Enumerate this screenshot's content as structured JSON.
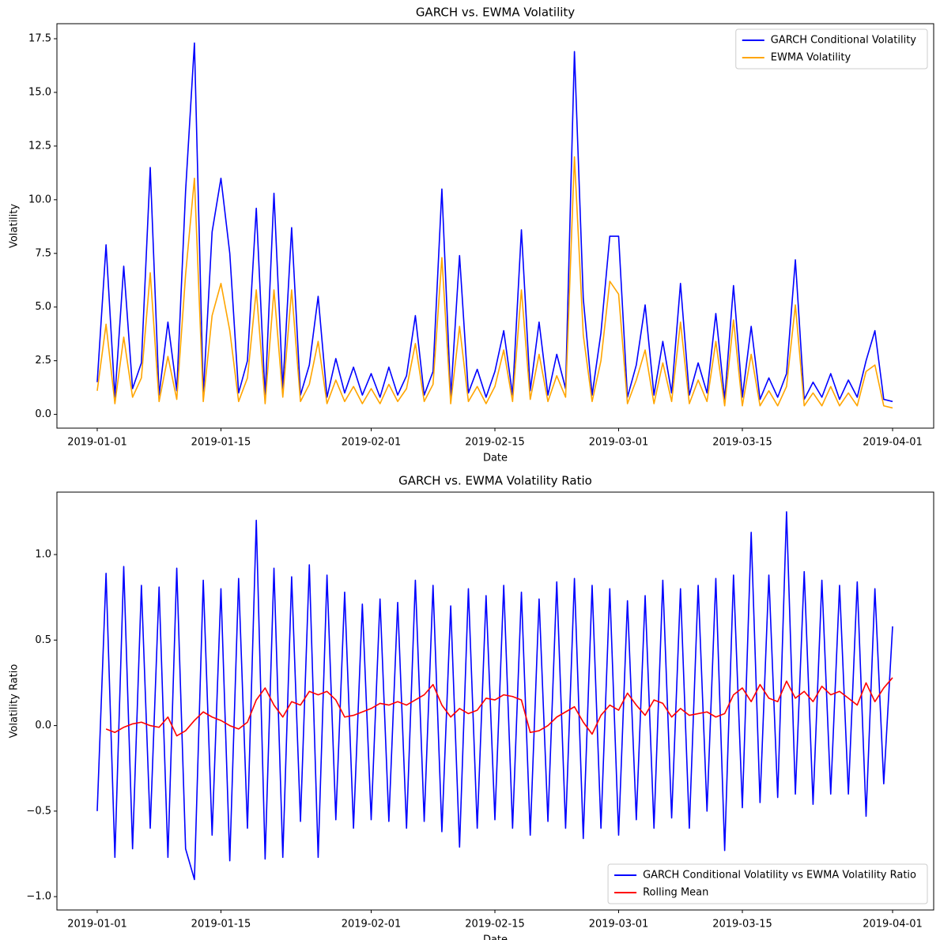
{
  "chart_data": [
    {
      "type": "line",
      "title": "GARCH vs. EWMA Volatility",
      "x_label": "Date",
      "y_label": "Volatility",
      "x": [
        "2019-01-01",
        "2019-01-02",
        "2019-01-03",
        "2019-01-04",
        "2019-01-05",
        "2019-01-06",
        "2019-01-07",
        "2019-01-08",
        "2019-01-09",
        "2019-01-10",
        "2019-01-11",
        "2019-01-12",
        "2019-01-13",
        "2019-01-14",
        "2019-01-15",
        "2019-01-16",
        "2019-01-17",
        "2019-01-18",
        "2019-01-19",
        "2019-01-20",
        "2019-01-21",
        "2019-01-22",
        "2019-01-23",
        "2019-01-24",
        "2019-01-25",
        "2019-01-26",
        "2019-01-27",
        "2019-01-28",
        "2019-01-29",
        "2019-01-30",
        "2019-01-31",
        "2019-02-01",
        "2019-02-02",
        "2019-02-03",
        "2019-02-04",
        "2019-02-05",
        "2019-02-06",
        "2019-02-07",
        "2019-02-08",
        "2019-02-09",
        "2019-02-10",
        "2019-02-11",
        "2019-02-12",
        "2019-02-13",
        "2019-02-14",
        "2019-02-15",
        "2019-02-16",
        "2019-02-17",
        "2019-02-18",
        "2019-02-19",
        "2019-02-20",
        "2019-02-21",
        "2019-02-22",
        "2019-02-23",
        "2019-02-24",
        "2019-02-25",
        "2019-02-26",
        "2019-02-27",
        "2019-02-28",
        "2019-03-01",
        "2019-03-02",
        "2019-03-03",
        "2019-03-04",
        "2019-03-05",
        "2019-03-06",
        "2019-03-07",
        "2019-03-08",
        "2019-03-09",
        "2019-03-10",
        "2019-03-11",
        "2019-03-12",
        "2019-03-13",
        "2019-03-14",
        "2019-03-15",
        "2019-03-16",
        "2019-03-17",
        "2019-03-18",
        "2019-03-19",
        "2019-03-20",
        "2019-03-21",
        "2019-03-22",
        "2019-03-23",
        "2019-03-24",
        "2019-03-25",
        "2019-03-26",
        "2019-03-27",
        "2019-03-28",
        "2019-03-29",
        "2019-03-30",
        "2019-03-31",
        "2019-04-01"
      ],
      "series": [
        {
          "name": "GARCH Conditional Volatility",
          "color": "#0000ff",
          "values": [
            1.5,
            7.9,
            0.8,
            6.9,
            1.2,
            2.4,
            11.5,
            0.9,
            4.3,
            1.1,
            10.4,
            17.3,
            0.9,
            8.5,
            11.0,
            7.5,
            1.0,
            2.5,
            9.6,
            0.8,
            10.3,
            1.2,
            8.7,
            0.9,
            2.3,
            5.5,
            0.8,
            2.6,
            1.0,
            2.2,
            0.9,
            1.9,
            0.8,
            2.2,
            0.9,
            1.8,
            4.6,
            0.9,
            2.0,
            10.5,
            0.8,
            7.4,
            1.0,
            2.1,
            0.8,
            2.0,
            3.9,
            0.9,
            8.6,
            1.1,
            4.3,
            0.9,
            2.8,
            1.2,
            16.9,
            5.4,
            0.9,
            3.8,
            8.3,
            8.3,
            0.8,
            2.3,
            5.1,
            0.9,
            3.4,
            1.0,
            6.1,
            0.9,
            2.4,
            1.0,
            4.7,
            0.7,
            6.0,
            0.8,
            4.1,
            0.7,
            1.7,
            0.8,
            1.9,
            7.2,
            0.7,
            1.5,
            0.8,
            1.9,
            0.7,
            1.6,
            0.8,
            2.5,
            3.9,
            0.7,
            0.6
          ]
        },
        {
          "name": "EWMA Volatility",
          "color": "#ffa500",
          "values": [
            1.1,
            4.2,
            0.5,
            3.6,
            0.8,
            1.7,
            6.6,
            0.6,
            2.7,
            0.7,
            6.5,
            11.0,
            0.6,
            4.6,
            6.1,
            3.9,
            0.6,
            1.7,
            5.8,
            0.5,
            5.8,
            0.8,
            5.8,
            0.6,
            1.4,
            3.4,
            0.5,
            1.6,
            0.6,
            1.3,
            0.5,
            1.2,
            0.5,
            1.4,
            0.6,
            1.2,
            3.3,
            0.6,
            1.4,
            7.3,
            0.5,
            4.1,
            0.6,
            1.3,
            0.5,
            1.3,
            3.0,
            0.6,
            5.8,
            0.7,
            2.8,
            0.6,
            1.8,
            0.8,
            12.0,
            3.7,
            0.6,
            2.5,
            6.2,
            5.6,
            0.5,
            1.6,
            3.0,
            0.5,
            2.4,
            0.6,
            4.3,
            0.5,
            1.6,
            0.6,
            3.4,
            0.4,
            4.4,
            0.4,
            2.8,
            0.4,
            1.1,
            0.4,
            1.3,
            5.1,
            0.4,
            1.0,
            0.4,
            1.3,
            0.4,
            1.0,
            0.4,
            2.0,
            2.3,
            0.4,
            0.3
          ]
        }
      ],
      "xlim": [
        "2018-12-27T10:34",
        "2019-04-05T15:36"
      ],
      "xticks": [
        "2019-01-01",
        "2019-01-15",
        "2019-02-01",
        "2019-02-15",
        "2019-03-01",
        "2019-03-15",
        "2019-04-01"
      ],
      "ylim": [
        -0.64,
        18.2
      ],
      "yticks": [
        {
          "value": 0,
          "label": "0.0"
        },
        2.5,
        {
          "value": 5,
          "label": "5.0"
        },
        7.5,
        {
          "value": 10,
          "label": "10.0"
        },
        12.5,
        {
          "value": 15,
          "label": "15.0"
        },
        17.5
      ],
      "legend": "upper right"
    },
    {
      "type": "line",
      "title": "GARCH vs. EWMA Volatility Ratio",
      "x_label": "Date",
      "y_label": "Volatility Ratio",
      "x": [
        "2019-01-01",
        "2019-01-02",
        "2019-01-03",
        "2019-01-04",
        "2019-01-05",
        "2019-01-06",
        "2019-01-07",
        "2019-01-08",
        "2019-01-09",
        "2019-01-10",
        "2019-01-11",
        "2019-01-12",
        "2019-01-13",
        "2019-01-14",
        "2019-01-15",
        "2019-01-16",
        "2019-01-17",
        "2019-01-18",
        "2019-01-19",
        "2019-01-20",
        "2019-01-21",
        "2019-01-22",
        "2019-01-23",
        "2019-01-24",
        "2019-01-25",
        "2019-01-26",
        "2019-01-27",
        "2019-01-28",
        "2019-01-29",
        "2019-01-30",
        "2019-01-31",
        "2019-02-01",
        "2019-02-02",
        "2019-02-03",
        "2019-02-04",
        "2019-02-05",
        "2019-02-06",
        "2019-02-07",
        "2019-02-08",
        "2019-02-09",
        "2019-02-10",
        "2019-02-11",
        "2019-02-12",
        "2019-02-13",
        "2019-02-14",
        "2019-02-15",
        "2019-02-16",
        "2019-02-17",
        "2019-02-18",
        "2019-02-19",
        "2019-02-20",
        "2019-02-21",
        "2019-02-22",
        "2019-02-23",
        "2019-02-24",
        "2019-02-25",
        "2019-02-26",
        "2019-02-27",
        "2019-02-28",
        "2019-03-01",
        "2019-03-02",
        "2019-03-03",
        "2019-03-04",
        "2019-03-05",
        "2019-03-06",
        "2019-03-07",
        "2019-03-08",
        "2019-03-09",
        "2019-03-10",
        "2019-03-11",
        "2019-03-12",
        "2019-03-13",
        "2019-03-14",
        "2019-03-15",
        "2019-03-16",
        "2019-03-17",
        "2019-03-18",
        "2019-03-19",
        "2019-03-20",
        "2019-03-21",
        "2019-03-22",
        "2019-03-23",
        "2019-03-24",
        "2019-03-25",
        "2019-03-26",
        "2019-03-27",
        "2019-03-28",
        "2019-03-29",
        "2019-03-30",
        "2019-03-31",
        "2019-04-01"
      ],
      "series": [
        {
          "name": "GARCH Conditional Volatility vs EWMA Volatility Ratio",
          "color": "#0000ff",
          "values": [
            -0.5,
            0.89,
            -0.77,
            0.93,
            -0.72,
            0.82,
            -0.6,
            0.81,
            -0.77,
            0.92,
            -0.72,
            -0.9,
            0.85,
            -0.64,
            0.8,
            -0.79,
            0.86,
            -0.6,
            1.2,
            -0.78,
            0.92,
            -0.77,
            0.87,
            -0.56,
            0.94,
            -0.77,
            0.88,
            -0.55,
            0.78,
            -0.6,
            0.71,
            -0.55,
            0.74,
            -0.56,
            0.72,
            -0.6,
            0.85,
            -0.56,
            0.82,
            -0.62,
            0.7,
            -0.71,
            0.8,
            -0.6,
            0.76,
            -0.55,
            0.82,
            -0.6,
            0.78,
            -0.64,
            0.74,
            -0.56,
            0.84,
            -0.6,
            0.86,
            -0.66,
            0.82,
            -0.6,
            0.8,
            -0.64,
            0.73,
            -0.55,
            0.76,
            -0.6,
            0.85,
            -0.54,
            0.8,
            -0.6,
            0.82,
            -0.5,
            0.86,
            -0.73,
            0.88,
            -0.48,
            1.13,
            -0.45,
            0.88,
            -0.42,
            1.25,
            -0.4,
            0.9,
            -0.46,
            0.85,
            -0.4,
            0.82,
            -0.4,
            0.84,
            -0.53,
            0.8,
            -0.34,
            0.58
          ]
        },
        {
          "name": "Rolling Mean",
          "color": "#ff0000",
          "values": [
            null,
            -0.02,
            -0.04,
            -0.01,
            0.01,
            0.02,
            0.0,
            -0.01,
            0.05,
            -0.06,
            -0.03,
            0.03,
            0.08,
            0.05,
            0.03,
            0.0,
            -0.02,
            0.02,
            0.15,
            0.22,
            0.12,
            0.05,
            0.14,
            0.12,
            0.2,
            0.18,
            0.2,
            0.15,
            0.05,
            0.06,
            0.08,
            0.1,
            0.13,
            0.12,
            0.14,
            0.12,
            0.15,
            0.18,
            0.24,
            0.12,
            0.05,
            0.1,
            0.07,
            0.09,
            0.16,
            0.15,
            0.18,
            0.17,
            0.15,
            -0.04,
            -0.03,
            0.0,
            0.05,
            0.08,
            0.11,
            0.02,
            -0.05,
            0.06,
            0.12,
            0.09,
            0.19,
            0.12,
            0.06,
            0.15,
            0.13,
            0.05,
            0.1,
            0.06,
            0.07,
            0.08,
            0.05,
            0.07,
            0.18,
            0.22,
            0.14,
            0.24,
            0.16,
            0.14,
            0.26,
            0.16,
            0.2,
            0.14,
            0.23,
            0.18,
            0.2,
            0.16,
            0.12,
            0.25,
            0.14,
            0.22,
            0.28
          ]
        }
      ],
      "xlim": [
        "2018-12-27T10:34",
        "2019-04-05T15:36"
      ],
      "xticks": [
        "2019-01-01",
        "2019-01-15",
        "2019-02-01",
        "2019-02-15",
        "2019-03-01",
        "2019-03-15",
        "2019-04-01"
      ],
      "ylim": [
        -1.078,
        1.365
      ],
      "yticks": [
        {
          "value": -1,
          "label": "−1.0"
        },
        {
          "value": -0.5,
          "label": "−0.5"
        },
        {
          "value": 0,
          "label": "0.0"
        },
        0.5,
        {
          "value": 1,
          "label": "1.0"
        }
      ],
      "legend": "lower right"
    }
  ]
}
